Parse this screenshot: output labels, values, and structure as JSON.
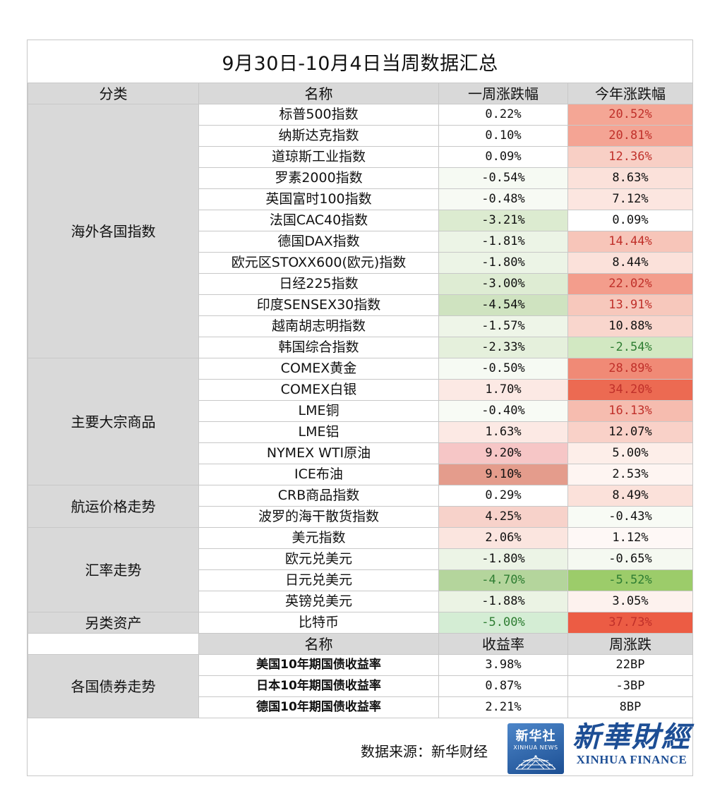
{
  "title": "9月30日-10月4日当周数据汇总",
  "header": {
    "category": "分类",
    "name": "名称",
    "week": "一周涨跌幅",
    "ytd": "今年涨跌幅"
  },
  "groups": [
    {
      "label": "海外各国指数",
      "rows": [
        {
          "name": "标普500指数",
          "week": "0.22%",
          "week_color": "#ffffff",
          "ytd": "20.52%",
          "ytd_color": "#f4a695",
          "ytd_text": "#c0302a"
        },
        {
          "name": "纳斯达克指数",
          "week": "0.10%",
          "week_color": "#ffffff",
          "ytd": "20.81%",
          "ytd_color": "#f4a494",
          "ytd_text": "#c0302a"
        },
        {
          "name": "道琼斯工业指数",
          "week": "0.09%",
          "week_color": "#ffffff",
          "ytd": "12.36%",
          "ytd_color": "#f8cfc5",
          "ytd_text": "#c0302a"
        },
        {
          "name": "罗素2000指数",
          "week": "-0.54%",
          "week_color": "#f6faf3",
          "ytd": "8.63%",
          "ytd_color": "#fbe1da",
          "ytd_text": "#111111"
        },
        {
          "name": "英国富时100指数",
          "week": "-0.48%",
          "week_color": "#f7faf4",
          "ytd": "7.12%",
          "ytd_color": "#fce6e0",
          "ytd_text": "#111111"
        },
        {
          "name": "法国CAC40指数",
          "week": "-3.21%",
          "week_color": "#dcebd0",
          "ytd": "0.09%",
          "ytd_color": "#ffffff",
          "ytd_text": "#111111"
        },
        {
          "name": "德国DAX指数",
          "week": "-1.81%",
          "week_color": "#ecf4e6",
          "ytd": "14.44%",
          "ytd_color": "#f7c5b9",
          "ytd_text": "#c0302a"
        },
        {
          "name": "欧元区STOXX600(欧元)指数",
          "week": "-1.80%",
          "week_color": "#ecf4e6",
          "ytd": "8.44%",
          "ytd_color": "#fbe1da",
          "ytd_text": "#111111"
        },
        {
          "name": "日经225指数",
          "week": "-3.00%",
          "week_color": "#deecd3",
          "ytd": "22.02%",
          "ytd_color": "#f39d8c",
          "ytd_text": "#c0302a"
        },
        {
          "name": "印度SENSEX30指数",
          "week": "-4.54%",
          "week_color": "#cfe3c0",
          "ytd": "13.91%",
          "ytd_color": "#f7c8bc",
          "ytd_text": "#c0302a"
        },
        {
          "name": "越南胡志明指数",
          "week": "-1.57%",
          "week_color": "#eef5e8",
          "ytd": "10.88%",
          "ytd_color": "#f9d6cd",
          "ytd_text": "#111111"
        },
        {
          "name": "韩国综合指数",
          "week": "-2.33%",
          "week_color": "#e5f0dc",
          "ytd": "-2.54%",
          "ytd_color": "#d2e8c2",
          "ytd_text": "#2e7d32"
        }
      ]
    },
    {
      "label": "主要大宗商品",
      "rows": [
        {
          "name": "COMEX黄金",
          "week": "-0.50%",
          "week_color": "#f6faf3",
          "ytd": "28.89%",
          "ytd_color": "#f08a76",
          "ytd_text": "#c0302a"
        },
        {
          "name": "COMEX白银",
          "week": "1.70%",
          "week_color": "#fce9e4",
          "ytd": "34.20%",
          "ytd_color": "#ec6a52",
          "ytd_text": "#c0302a"
        },
        {
          "name": "LME铜",
          "week": "-0.40%",
          "week_color": "#f8fbf5",
          "ytd": "16.13%",
          "ytd_color": "#f6bcaf",
          "ytd_text": "#c0302a"
        },
        {
          "name": "LME铝",
          "week": "1.63%",
          "week_color": "#fce9e4",
          "ytd": "12.07%",
          "ytd_color": "#f9d1c8",
          "ytd_text": "#111111"
        },
        {
          "name": "NYMEX WTI原油",
          "week": "9.20%",
          "week_color": "#f6c6c6",
          "ytd": "5.00%",
          "ytd_color": "#fdeee9",
          "ytd_text": "#111111"
        },
        {
          "name": "ICE布油",
          "week": "9.10%",
          "week_color": "#e49c8c",
          "ytd": "2.53%",
          "ytd_color": "#fef5f2",
          "ytd_text": "#111111"
        }
      ]
    },
    {
      "label": "航运价格走势",
      "rows": [
        {
          "name": "CRB商品指数",
          "week": "0.29%",
          "week_color": "#ffffff",
          "ytd": "8.49%",
          "ytd_color": "#fbe1da",
          "ytd_text": "#111111"
        },
        {
          "name": "波罗的海干散货指数",
          "week": "4.25%",
          "week_color": "#f7d2ca",
          "ytd": "-0.43%",
          "ytd_color": "#f8fbf5",
          "ytd_text": "#111111"
        }
      ]
    },
    {
      "label": "汇率走势",
      "rows": [
        {
          "name": "美元指数",
          "week": "2.06%",
          "week_color": "#fbe5df",
          "ytd": "1.12%",
          "ytd_color": "#fef8f6",
          "ytd_text": "#111111"
        },
        {
          "name": "欧元兑美元",
          "week": "-1.80%",
          "week_color": "#ecf4e6",
          "ytd": "-0.65%",
          "ytd_color": "#f5f9f1",
          "ytd_text": "#111111"
        },
        {
          "name": "日元兑美元",
          "week": "-4.70%",
          "week_color": "#b4d59c",
          "week_text": "#2e7d32",
          "ytd": "-5.52%",
          "ytd_color": "#9ccc6a",
          "ytd_text": "#2e7d32"
        },
        {
          "name": "英镑兑美元",
          "week": "-1.88%",
          "week_color": "#ebf3e4",
          "ytd": "3.05%",
          "ytd_color": "#fdf2ee",
          "ytd_text": "#111111"
        }
      ]
    },
    {
      "label": "另类资产",
      "rows": [
        {
          "name": "比特币",
          "week": "-5.00%",
          "week_color": "#d4edd4",
          "week_text": "#2e7d32",
          "ytd": "37.73%",
          "ytd_color": "#ec5c44",
          "ytd_text": "#c0302a"
        }
      ]
    }
  ],
  "bond_header": {
    "name": "名称",
    "yield": "收益率",
    "change": "周涨跌"
  },
  "bonds": {
    "label": "各国债券走势",
    "rows": [
      {
        "name": "美国10年期国债收益率",
        "yield": "3.98%",
        "change": "22BP"
      },
      {
        "name": "日本10年期国债收益率",
        "yield": "0.87%",
        "change": "-3BP"
      },
      {
        "name": "德国10年期国债收益率",
        "yield": "2.21%",
        "change": "8BP"
      }
    ]
  },
  "footer": {
    "source": "数据来源：新华财经",
    "logo_cn": "新华社",
    "logo_en": "XINHUA NEWS",
    "brand_cn": "新華財經",
    "brand_en": "XINHUA FINANCE"
  }
}
